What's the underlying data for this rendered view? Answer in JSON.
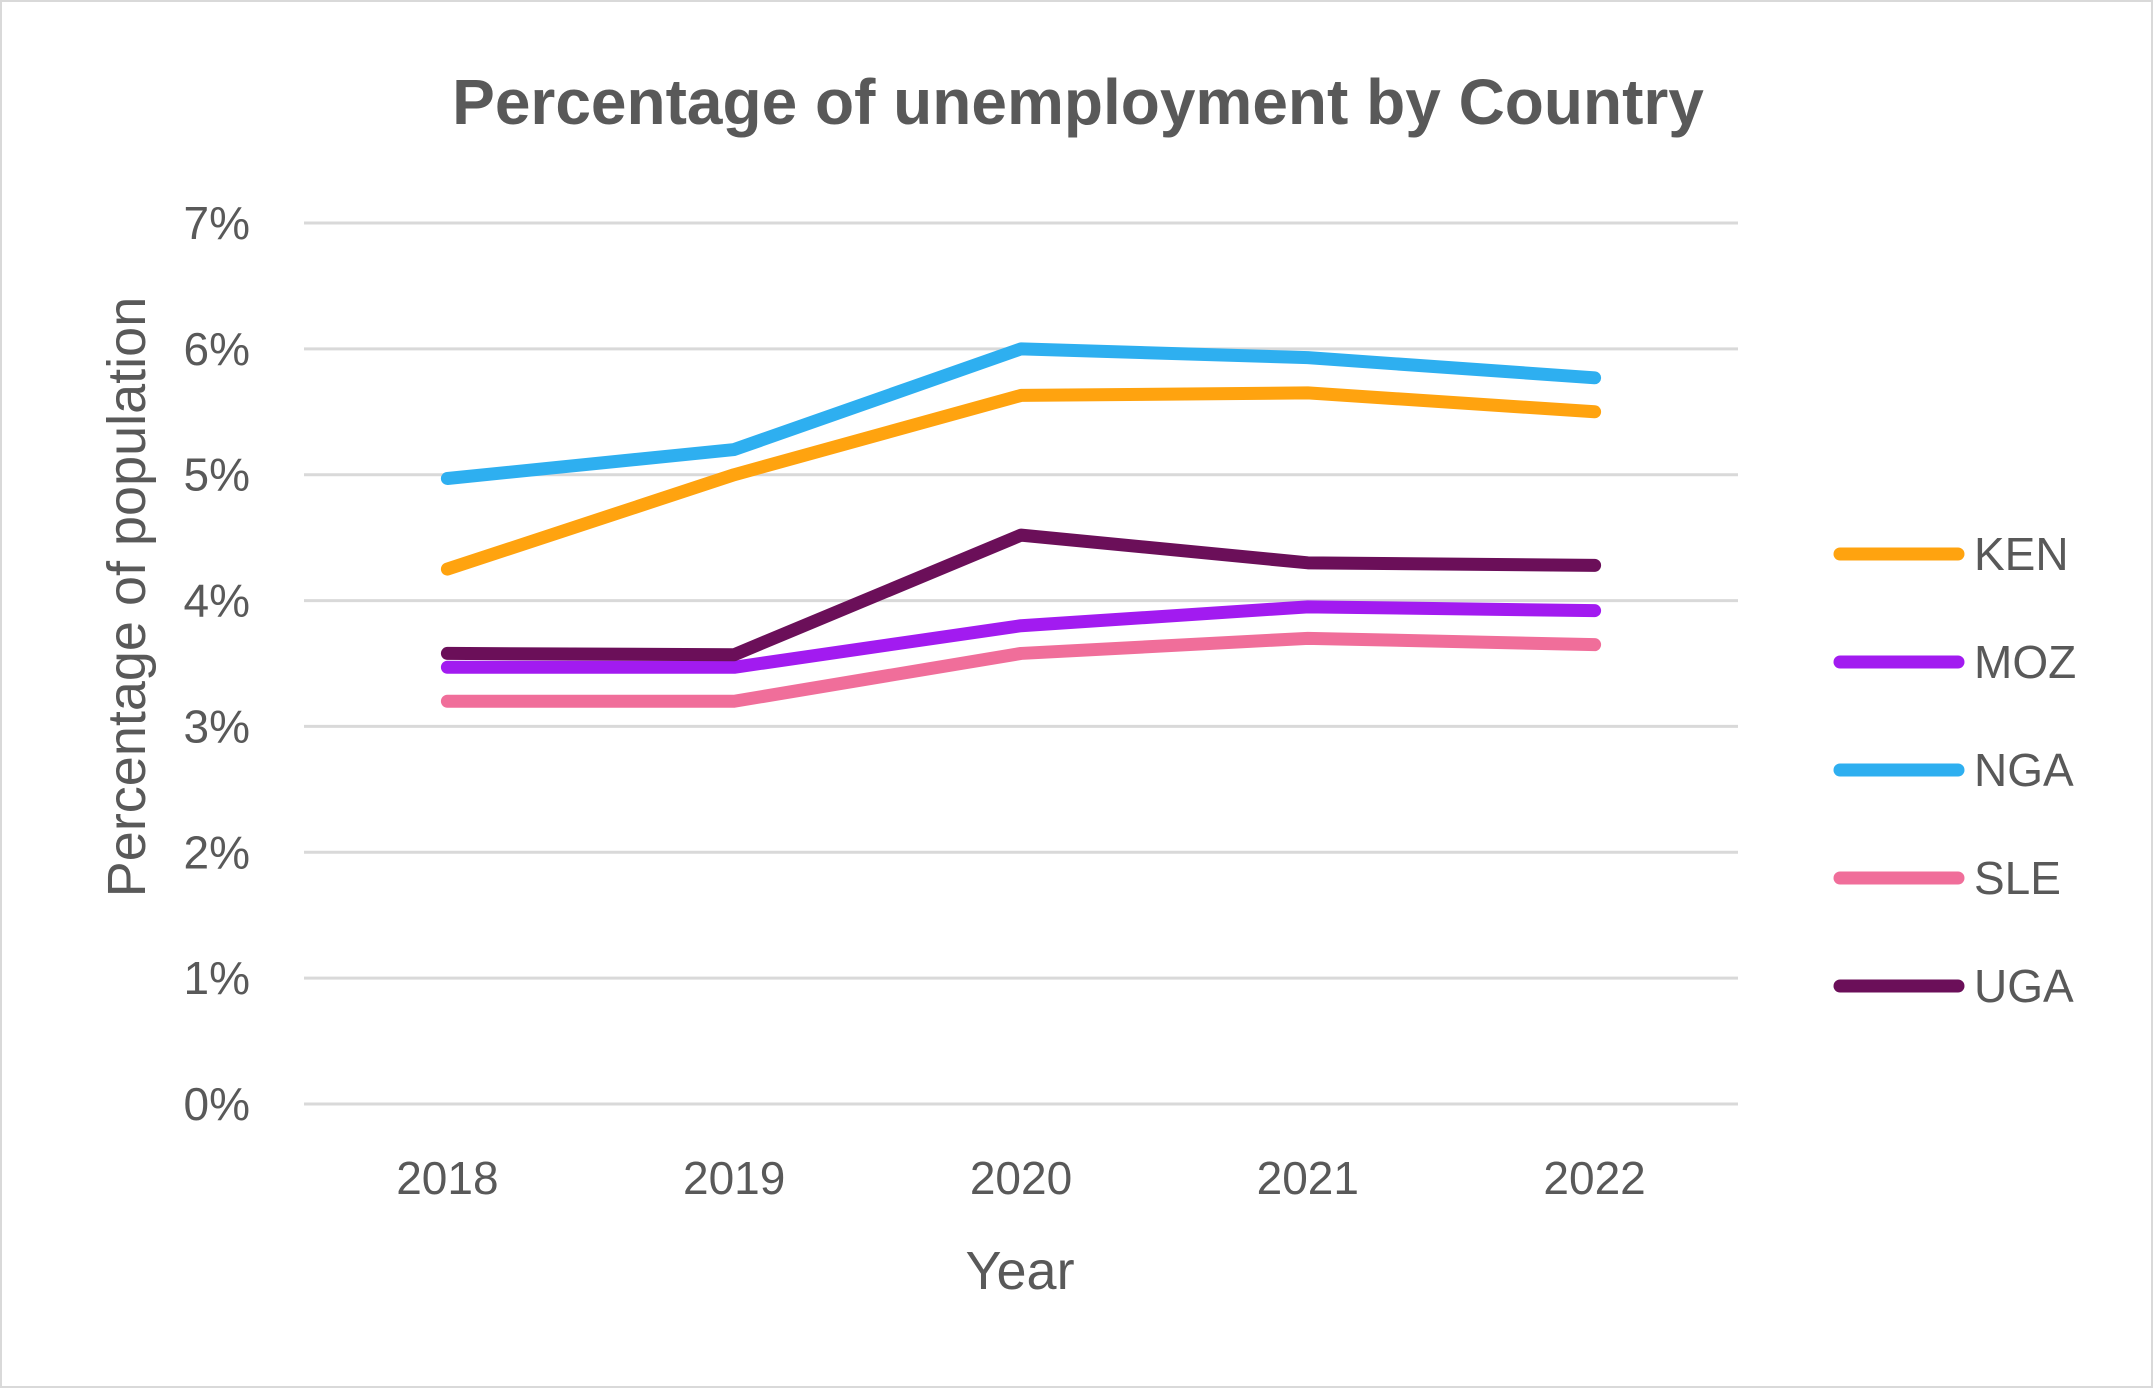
{
  "chart_data": {
    "type": "line",
    "title": "Percentage of unemployment by Country",
    "xlabel": "Year",
    "ylabel": "Percentage of population",
    "categories": [
      "2018",
      "2019",
      "2020",
      "2021",
      "2022"
    ],
    "y_ticks": [
      "0%",
      "1%",
      "2%",
      "3%",
      "4%",
      "5%",
      "6%",
      "7%"
    ],
    "ylim": [
      0,
      7
    ],
    "grid": true,
    "legend_position": "right",
    "series": [
      {
        "name": "KEN",
        "color": "#ffa30f",
        "values": [
          4.25,
          5.0,
          5.63,
          5.65,
          5.5
        ]
      },
      {
        "name": "MOZ",
        "color": "#a21bf0",
        "values": [
          3.47,
          3.47,
          3.8,
          3.95,
          3.92
        ]
      },
      {
        "name": "NGA",
        "color": "#2eaff0",
        "values": [
          4.97,
          5.2,
          6.0,
          5.93,
          5.77
        ]
      },
      {
        "name": "SLE",
        "color": "#f06e9a",
        "values": [
          3.2,
          3.2,
          3.58,
          3.7,
          3.65
        ]
      },
      {
        "name": "UGA",
        "color": "#6b0f59",
        "values": [
          3.58,
          3.57,
          4.52,
          4.3,
          4.28
        ]
      }
    ]
  }
}
